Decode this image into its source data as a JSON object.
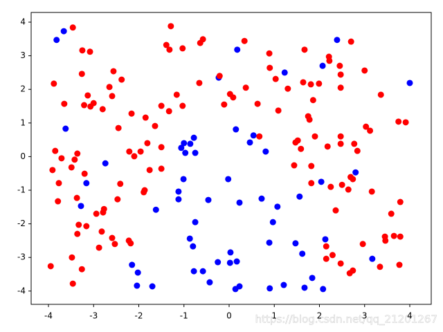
{
  "chart_data": {
    "type": "scatter",
    "xlim": [
      -4.383,
      4.475
    ],
    "ylim": [
      -4.395,
      4.288
    ],
    "xticks": [
      -4,
      -3,
      -2,
      -1,
      0,
      1,
      2,
      3,
      4
    ],
    "yticks": [
      -4,
      -3,
      -2,
      -1,
      0,
      1,
      2,
      3,
      4
    ],
    "watermark": "https://blog.csdn.net/qq_21201267",
    "series": [
      {
        "color": "#0000ff",
        "x": [
          -3.82,
          -3.66,
          -3.62,
          -3.16,
          -3.28,
          -2.74,
          -2.15,
          -2.02,
          -2.04,
          -1.7,
          -1.62,
          -1.12,
          -1.06,
          -1.0,
          -0.97,
          -0.86,
          -0.78,
          -0.75,
          -1.01,
          -1.12,
          -0.75,
          -0.87,
          -0.8,
          -0.78,
          -0.58,
          -0.46,
          -0.25,
          -0.43,
          -0.23,
          -0.02,
          0.03,
          0.02,
          0.14,
          0.17,
          0.23,
          0.23,
          0.15,
          0.46,
          0.54,
          0.72,
          0.81,
          0.97,
          0.89,
          1.07,
          0.9,
          1.21,
          1.23,
          1.47,
          1.56,
          1.62,
          1.67,
          1.84,
          2.04,
          2.07,
          2.13,
          2.08,
          2.39,
          2.8,
          3.17,
          4.0,
          0.18
        ],
        "y": [
          3.47,
          3.73,
          0.83,
          -0.79,
          -1.47,
          -0.2,
          -3.22,
          -3.45,
          -3.84,
          -3.86,
          -1.58,
          -1.04,
          0.26,
          0.4,
          0.11,
          0.38,
          0.56,
          0.11,
          -0.67,
          -1.27,
          -1.95,
          -2.44,
          -2.67,
          -3.41,
          -3.41,
          -1.29,
          -3.14,
          -3.74,
          2.35,
          -0.67,
          -2.85,
          -3.16,
          -3.94,
          -3.12,
          -3.86,
          -1.37,
          0.81,
          0.42,
          0.63,
          -1.25,
          0.15,
          -1.95,
          -2.56,
          -1.49,
          -3.92,
          -3.82,
          2.5,
          -2.58,
          -1.19,
          -2.89,
          -3.9,
          -3.61,
          -0.75,
          2.7,
          -2.46,
          -3.94,
          3.47,
          -0.47,
          -3.04,
          2.19,
          3.18
        ]
      },
      {
        "color": "#ff0000",
        "x": [
          -3.46,
          -3.25,
          -3.08,
          -1.29,
          -1.39,
          -1.32,
          -1.03,
          -0.64,
          -0.58,
          0.34,
          0.89,
          1.67,
          2.21,
          2.22,
          2.7,
          -3.88,
          -3.65,
          -3.26,
          -3.21,
          -3.13,
          -3.07,
          -3.0,
          -2.8,
          -2.65,
          -2.59,
          -2.56,
          -2.38,
          -2.16,
          -1.85,
          -1.64,
          -1.5,
          -1.33,
          -1.16,
          -1.03,
          -0.66,
          -0.21,
          -0.11,
          0.02,
          0.09,
          0.37,
          0.63,
          0.9,
          1.03,
          1.09,
          1.3,
          1.64,
          1.81,
          1.99,
          1.86,
          1.75,
          1.78,
          2.45,
          2.47,
          2.47,
          3.0,
          3.36,
          -3.85,
          -3.71,
          -3.91,
          -3.77,
          -3.79,
          -3.49,
          -3.42,
          -3.36,
          -3.2,
          -3.37,
          -3.16,
          -3.33,
          -3.36,
          -2.45,
          -2.41,
          -2.47,
          -2.79,
          -2.77,
          -2.94,
          -2.82,
          -2.88,
          -2.59,
          -2.53,
          -2.22,
          -2.18,
          -2.21,
          -2.1,
          -1.96,
          -1.81,
          -1.76,
          -1.87,
          -1.89,
          -1.5,
          -1.5,
          -3.95,
          -3.48,
          -3.46,
          -3.26,
          0.67,
          1.44,
          1.47,
          1.52,
          1.59,
          1.82,
          1.82,
          1.9,
          2.18,
          2.25,
          2.47,
          2.47,
          2.5,
          2.64,
          2.69,
          2.74,
          2.36,
          2.77,
          2.84,
          3.03,
          3.12,
          3.16,
          3.75,
          3.91,
          3.59,
          3.79,
          2.15,
          2.15,
          2.29,
          2.47,
          2.67,
          2.74,
          2.96,
          3.34,
          3.45,
          3.46,
          3.65,
          3.79,
          3.77
        ],
        "y": [
          3.84,
          3.16,
          3.12,
          3.88,
          3.32,
          3.18,
          3.22,
          3.38,
          3.49,
          3.44,
          3.07,
          3.18,
          2.97,
          2.85,
          3.42,
          2.17,
          1.57,
          2.46,
          1.53,
          1.82,
          1.49,
          1.59,
          1.41,
          2.07,
          1.8,
          2.54,
          2.29,
          1.28,
          1.16,
          0.91,
          1.51,
          1.35,
          1.84,
          1.51,
          2.19,
          2.4,
          1.55,
          1.86,
          1.76,
          2.05,
          1.57,
          2.64,
          2.31,
          1.37,
          2.02,
          2.21,
          2.15,
          2.17,
          1.68,
          1.2,
          1.1,
          2.7,
          2.44,
          2.05,
          2.56,
          1.84,
          0.17,
          -0.05,
          -0.4,
          -0.79,
          -1.33,
          -0.32,
          -0.09,
          0.09,
          -0.51,
          -1.23,
          -2.07,
          -2.03,
          -2.3,
          0.85,
          -0.81,
          -1.27,
          -1.66,
          -1.56,
          -1.7,
          -2.23,
          -2.71,
          -2.42,
          -2.6,
          -2.5,
          -2.58,
          0.15,
          0.01,
          0.15,
          0.4,
          -0.4,
          -1.0,
          -1.06,
          0.28,
          -0.36,
          -3.26,
          -3.0,
          -3.78,
          -3.35,
          0.6,
          -0.26,
          0.42,
          0.48,
          0.23,
          -0.28,
          -0.79,
          0.6,
          0.3,
          -0.9,
          0.6,
          0.38,
          -0.84,
          -0.98,
          -0.61,
          -0.67,
          -1.6,
          0.38,
          0.17,
          0.89,
          0.77,
          -1.04,
          1.04,
          1.02,
          -1.7,
          -1.35,
          -2.67,
          -3.04,
          -2.93,
          -3.18,
          -3.47,
          -3.39,
          -2.6,
          -3.28,
          -2.38,
          -2.5,
          -2.36,
          -2.38,
          -3.22
        ]
      }
    ]
  }
}
